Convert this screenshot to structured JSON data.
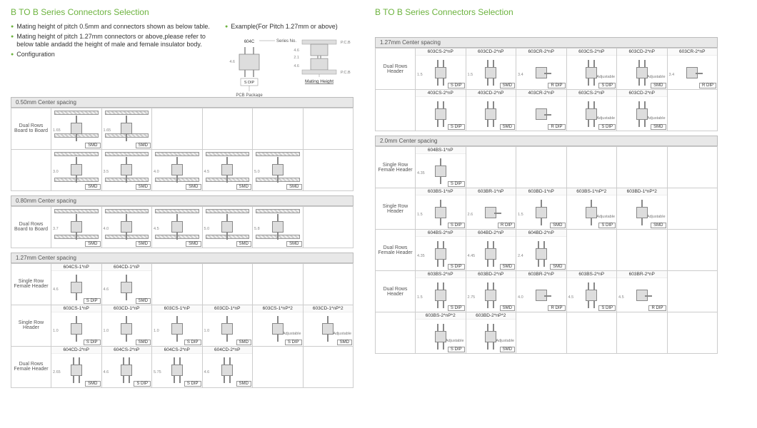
{
  "title": "B TO B Series Connectors Selection",
  "bullets": [
    "Mating height of pitch 0.5mm and connectors shown as below table.",
    "Mating height of pitch 1.27mm connectors or above,please refer to below table andadd the height of male and female insulator body.",
    "Configuration"
  ],
  "example_label": "Example(For Pitch 1.27mm or above)",
  "example": {
    "series_no": "604C",
    "series_label": "Series No.",
    "pkg": "S DIP",
    "pkg_label": "PCB Package",
    "mh_label": "Mating Height",
    "pcb_label": "P.C.B",
    "h1": "4.6",
    "h2": "2.1",
    "h3": "4.6"
  },
  "styling": {
    "accent": "#6db33f",
    "border": "#cccccc",
    "header_bg": "#e8e8e8",
    "hatch_light": "#eeeeee",
    "hatch_dark": "#cccccc",
    "body_fill": "#dddddd",
    "text": "#333333",
    "muted": "#888888",
    "fontsize_title": 12,
    "fontsize_body": 9,
    "fontsize_small": 7,
    "fontsize_tiny": 6
  },
  "pkg_types": {
    "sdip": "S DIP",
    "smd": "SMD",
    "rdip": "R DIP"
  },
  "left_sections": [
    {
      "header": "0.50mm Center spacing",
      "rows": [
        {
          "label": "Dual Rows Board to Board",
          "cells": [
            {
              "part": "",
              "pkg": "SMD",
              "dim": "1.65",
              "twin": true
            },
            {
              "part": "",
              "pkg": "SMD",
              "dim": "1.65",
              "twin": true
            },
            null,
            null,
            null,
            null
          ]
        },
        {
          "label": "",
          "cells": [
            {
              "part": "",
              "pkg": "SMD",
              "dim": "3.0",
              "stack": true
            },
            {
              "part": "",
              "pkg": "SMD",
              "dim": "3.5",
              "stack": true
            },
            {
              "part": "",
              "pkg": "SMD",
              "dim": "4.0",
              "stack": true
            },
            {
              "part": "",
              "pkg": "SMD",
              "dim": "4.5",
              "stack": true
            },
            {
              "part": "",
              "pkg": "SMD",
              "dim": "5.0",
              "stack": true
            },
            null
          ]
        }
      ]
    },
    {
      "header": "0.80mm Center spacing",
      "rows": [
        {
          "label": "Dual Rows Board to Board",
          "cells": [
            {
              "part": "",
              "pkg": "SMD",
              "dim": "3.7",
              "stack": true
            },
            {
              "part": "",
              "pkg": "SMD",
              "dim": "4.0",
              "stack": true
            },
            {
              "part": "",
              "pkg": "SMD",
              "dim": "4.5",
              "stack": true
            },
            {
              "part": "",
              "pkg": "SMD",
              "dim": "5.0",
              "stack": true
            },
            {
              "part": "",
              "pkg": "SMD",
              "dim": "5.8",
              "stack": true
            },
            null
          ]
        }
      ]
    },
    {
      "header": "1.27mm Center spacing",
      "rows": [
        {
          "label": "Single Row Female Header",
          "cells": [
            {
              "part": "604CS-1*nP",
              "pkg": "S DIP",
              "dim": "4.6",
              "pins": "single"
            },
            {
              "part": "604CD-1*nP",
              "pkg": "SMD",
              "dim": "4.6",
              "pins": "single"
            },
            null,
            null,
            null,
            null
          ]
        },
        {
          "label": "Single Row Header",
          "cells": [
            {
              "part": "603CS-1*nP",
              "pkg": "S DIP",
              "dim": "1.0",
              "pins": "single"
            },
            {
              "part": "603CD-1*nP",
              "pkg": "SMD",
              "dim": "1.0",
              "pins": "single"
            },
            {
              "part": "603CS-1*nP",
              "pkg": "S DIP",
              "dim": "1.0",
              "pins": "single"
            },
            {
              "part": "603CD-1*nP",
              "pkg": "SMD",
              "dim": "1.0",
              "pins": "single"
            },
            {
              "part": "603CS-1*nP*2",
              "pkg": "S DIP",
              "dim": "",
              "pins": "single",
              "adj": "Adjustable"
            },
            {
              "part": "603CD-1*nP*2",
              "pkg": "SMD",
              "dim": "",
              "pins": "single",
              "adj": "Adjustable"
            }
          ]
        },
        {
          "label": "Dual Rows Female Header",
          "cells": [
            {
              "part": "604CD-2*nP",
              "pkg": "SMD",
              "dim": "2.65",
              "pins": "dual"
            },
            {
              "part": "604CS-2*nP",
              "pkg": "S DIP",
              "dim": "4.6",
              "pins": "dual"
            },
            {
              "part": "604CS-2*nP",
              "pkg": "S DIP",
              "dim": "5.75",
              "pins": "dual"
            },
            {
              "part": "604CD-2*nP",
              "pkg": "SMD",
              "dim": "4.6",
              "pins": "dual"
            },
            null,
            null
          ]
        }
      ]
    }
  ],
  "right_sections": [
    {
      "header": "1.27mm Center spacing",
      "rows": [
        {
          "label": "Dual Rows Header",
          "cells": [
            {
              "part": "603CS-2*nP",
              "pkg": "S DIP",
              "dim": "1.5",
              "pins": "dual"
            },
            {
              "part": "603CD-2*nP",
              "pkg": "SMD",
              "dim": "1.5",
              "pins": "dual"
            },
            {
              "part": "603CR-2*nP",
              "pkg": "R DIP",
              "dim": "3.4",
              "pins": "right"
            },
            {
              "part": "603CS-2*nP",
              "pkg": "S DIP",
              "dim": "",
              "pins": "dual",
              "adj": "Adjustable"
            },
            {
              "part": "603CD-2*nP",
              "pkg": "SMD",
              "dim": "",
              "pins": "dual",
              "adj": "Adjustable"
            },
            {
              "part": "603CR-2*nP",
              "pkg": "R DIP",
              "dim": "3.4",
              "pins": "right"
            }
          ]
        },
        {
          "label": "",
          "cells": [
            {
              "part": "403CS-2*nP",
              "pkg": "S DIP",
              "dim": "",
              "pins": "dual"
            },
            {
              "part": "403CD-2*nP",
              "pkg": "SMD",
              "dim": "",
              "pins": "dual"
            },
            {
              "part": "403CR-2*nP",
              "pkg": "R DIP",
              "dim": "",
              "pins": "right"
            },
            {
              "part": "603CS-2*nP",
              "pkg": "S DIP",
              "dim": "",
              "pins": "dual",
              "adj": "Adjustable"
            },
            {
              "part": "603CD-2*nP",
              "pkg": "SMD",
              "dim": "",
              "pins": "dual",
              "adj": "Adjustable"
            },
            null
          ]
        }
      ]
    },
    {
      "header": "2.0mm Center spacing",
      "rows": [
        {
          "label": "Single Row Female Header",
          "cells": [
            {
              "part": "604BS-1*nP",
              "pkg": "S DIP",
              "dim": "4.35",
              "pins": "single"
            },
            null,
            null,
            null,
            null,
            null
          ]
        },
        {
          "label": "Single Row Header",
          "cells": [
            {
              "part": "603BS-1*nP",
              "pkg": "S DIP",
              "dim": "1.5",
              "pins": "single"
            },
            {
              "part": "603BR-1*nP",
              "pkg": "R DIP",
              "dim": "2.6",
              "pins": "right"
            },
            {
              "part": "603BD-1*nP",
              "pkg": "SMD",
              "dim": "1.5",
              "pins": "single"
            },
            {
              "part": "603BS-1*nP*2",
              "pkg": "S DIP",
              "dim": "",
              "pins": "single",
              "adj": "Adjustable"
            },
            {
              "part": "603BD-1*nP*2",
              "pkg": "SMD",
              "dim": "",
              "pins": "single",
              "adj": "Adjustable"
            },
            null
          ]
        },
        {
          "label": "Dual Rows Female Header",
          "cells": [
            {
              "part": "604BS-2*nP",
              "pkg": "S DIP",
              "dim": "4.35",
              "pins": "dual"
            },
            {
              "part": "604BD-2*nP",
              "pkg": "SMD",
              "dim": "4.45",
              "pins": "dual"
            },
            {
              "part": "604BD-2*nP",
              "pkg": "SMD",
              "dim": "2.4",
              "pins": "dual"
            },
            null,
            null,
            null
          ]
        },
        {
          "label": "Dual Rows Header",
          "cells": [
            {
              "part": "603BS-2*nP",
              "pkg": "S DIP",
              "dim": "1.5",
              "pins": "dual"
            },
            {
              "part": "603BD-2*nP",
              "pkg": "SMD",
              "dim": "2.75",
              "pins": "dual"
            },
            {
              "part": "603BR-2*nP",
              "pkg": "R DIP",
              "dim": "4.0",
              "pins": "right"
            },
            {
              "part": "603BS-2*nP",
              "pkg": "S DIP",
              "dim": "4.5",
              "pins": "dual"
            },
            {
              "part": "603BR-2*nP",
              "pkg": "R DIP",
              "dim": "4.5",
              "pins": "right"
            },
            null
          ]
        },
        {
          "label": "",
          "cells": [
            {
              "part": "603BS-2*nP*2",
              "pkg": "S DIP",
              "dim": "",
              "pins": "dual",
              "adj": "Adjustable"
            },
            {
              "part": "603BD-2*nP*2",
              "pkg": "SMD",
              "dim": "",
              "pins": "dual",
              "adj": "Adjustable"
            },
            null,
            null,
            null,
            null
          ]
        }
      ]
    }
  ]
}
